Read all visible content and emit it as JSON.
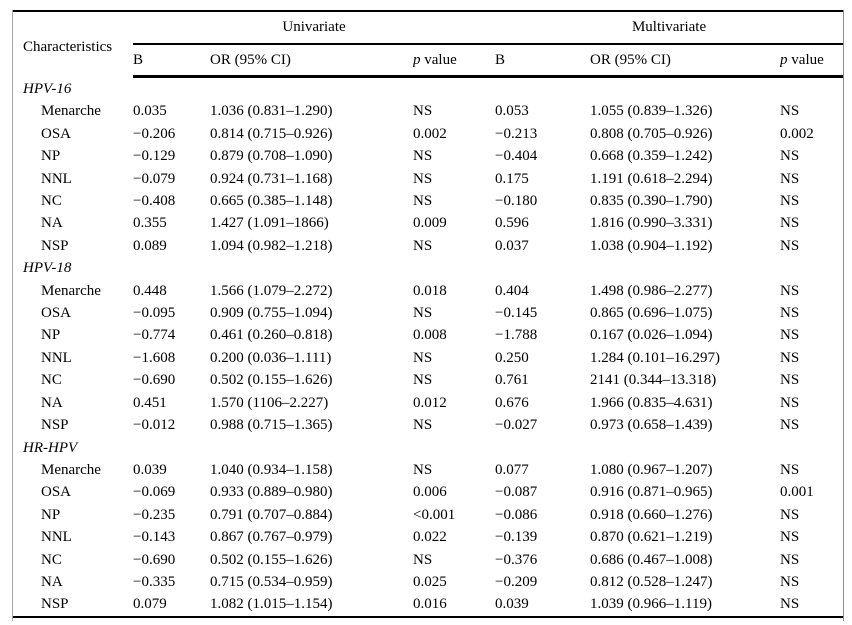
{
  "table": {
    "characteristics_header": "Characteristics",
    "group_headers": [
      "Univariate",
      "Multivariate"
    ],
    "sub_header": {
      "b": "B",
      "or": "OR (95% CI)",
      "p_italic": "p",
      "p_rest": " value"
    },
    "sections": [
      {
        "name": "HPV-16",
        "rows": [
          {
            "label": "Menarche",
            "cells": [
              "0.035",
              "1.036 (0.831–1.290)",
              "NS",
              "0.053",
              "1.055 (0.839–1.326)",
              "NS"
            ]
          },
          {
            "label": "OSA",
            "cells": [
              "−0.206",
              "0.814 (0.715–0.926)",
              "0.002",
              "−0.213",
              "0.808 (0.705–0.926)",
              "0.002"
            ]
          },
          {
            "label": "NP",
            "cells": [
              "−0.129",
              "0.879 (0.708–1.090)",
              "NS",
              "−0.404",
              "0.668 (0.359–1.242)",
              "NS"
            ]
          },
          {
            "label": "NNL",
            "cells": [
              "−0.079",
              "0.924 (0.731–1.168)",
              "NS",
              "0.175",
              "1.191 (0.618–2.294)",
              "NS"
            ]
          },
          {
            "label": "NC",
            "cells": [
              "−0.408",
              "0.665 (0.385–1.148)",
              "NS",
              "−0.180",
              "0.835 (0.390–1.790)",
              "NS"
            ]
          },
          {
            "label": "NA",
            "cells": [
              "0.355",
              "1.427 (1.091–1866)",
              "0.009",
              "0.596",
              "1.816 (0.990–3.331)",
              "NS"
            ]
          },
          {
            "label": "NSP",
            "cells": [
              "0.089",
              "1.094 (0.982–1.218)",
              "NS",
              "0.037",
              "1.038 (0.904–1.192)",
              "NS"
            ]
          }
        ]
      },
      {
        "name": "HPV-18",
        "rows": [
          {
            "label": "Menarche",
            "cells": [
              "0.448",
              "1.566 (1.079–2.272)",
              "0.018",
              "0.404",
              "1.498 (0.986–2.277)",
              "NS"
            ]
          },
          {
            "label": "OSA",
            "cells": [
              "−0.095",
              "0.909 (0.755–1.094)",
              "NS",
              "−0.145",
              "0.865 (0.696–1.075)",
              "NS"
            ]
          },
          {
            "label": "NP",
            "cells": [
              "−0.774",
              "0.461 (0.260–0.818)",
              "0.008",
              "−1.788",
              "0.167 (0.026–1.094)",
              "NS"
            ]
          },
          {
            "label": "NNL",
            "cells": [
              "−1.608",
              "0.200 (0.036–1.111)",
              "NS",
              "0.250",
              "1.284 (0.101–16.297)",
              "NS"
            ]
          },
          {
            "label": "NC",
            "cells": [
              "−0.690",
              "0.502 (0.155–1.626)",
              "NS",
              "0.761",
              "2141 (0.344–13.318)",
              "NS"
            ]
          },
          {
            "label": "NA",
            "cells": [
              "0.451",
              "1.570 (1106–2.227)",
              "0.012",
              "0.676",
              "1.966 (0.835–4.631)",
              "NS"
            ]
          },
          {
            "label": "NSP",
            "cells": [
              "−0.012",
              "0.988 (0.715–1.365)",
              "NS",
              "−0.027",
              "0.973 (0.658–1.439)",
              "NS"
            ]
          }
        ]
      },
      {
        "name": "HR-HPV",
        "rows": [
          {
            "label": "Menarche",
            "cells": [
              "0.039",
              "1.040 (0.934–1.158)",
              "NS",
              "0.077",
              "1.080 (0.967–1.207)",
              "NS"
            ]
          },
          {
            "label": "OSA",
            "cells": [
              "−0.069",
              "0.933 (0.889–0.980)",
              "0.006",
              "−0.087",
              "0.916 (0.871–0.965)",
              "0.001"
            ]
          },
          {
            "label": "NP",
            "cells": [
              "−0.235",
              "0.791 (0.707–0.884)",
              "<0.001",
              "−0.086",
              "0.918 (0.660–1.276)",
              "NS"
            ]
          },
          {
            "label": "NNL",
            "cells": [
              "−0.143",
              "0.867 (0.767–0.979)",
              "0.022",
              "−0.139",
              "0.870 (0.621–1.219)",
              "NS"
            ]
          },
          {
            "label": "NC",
            "cells": [
              "−0.690",
              "0.502 (0.155–1.626)",
              "NS",
              "−0.376",
              "0.686 (0.467–1.008)",
              "NS"
            ]
          },
          {
            "label": "NA",
            "cells": [
              "−0.335",
              "0.715 (0.534–0.959)",
              "0.025",
              "−0.209",
              "0.812 (0.528–1.247)",
              "NS"
            ]
          },
          {
            "label": "NSP",
            "cells": [
              "0.079",
              "1.082 (1.015–1.154)",
              "0.016",
              "0.039",
              "1.039 (0.966–1.119)",
              "NS"
            ]
          }
        ]
      }
    ]
  }
}
